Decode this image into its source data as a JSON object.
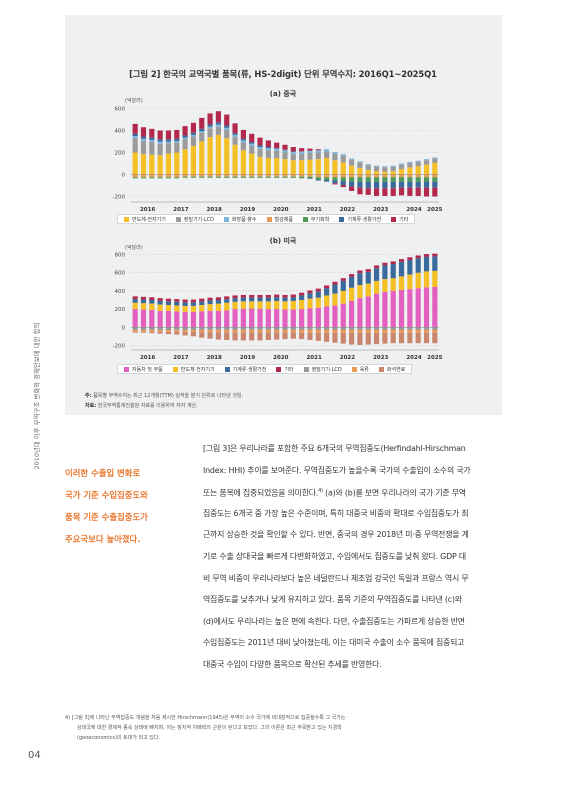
{
  "side_label": "2010년대 이후 무역구조 변화와 경제안보에 대한 함의",
  "figure": {
    "title": "[그림 2] 한국의 교역국별 품목(류, HS-2digit) 단위 무역수지: 2016Q1~2025Q1",
    "panel_a_title": "(a) 중국",
    "panel_b_title": "(b) 미국",
    "unit_label": "(억달러)",
    "note_label": "주:",
    "note_text": "품목별 무역수지는 최근 12개월(TTM) 실적을 분기 단위로 나타낸 것임.",
    "source_label": "자료:",
    "source_text": "한국무역통계진흥원 자료를 이용하여 저자 계산."
  },
  "legend_a": [
    {
      "label": "반도체·전자기기",
      "color": "#f5c026"
    },
    {
      "label": "정밀기기·LCD",
      "color": "#9a9a9a"
    },
    {
      "label": "화장품·향수",
      "color": "#7fb6de"
    },
    {
      "label": "철강제품",
      "color": "#e99a55"
    },
    {
      "label": "무기화학",
      "color": "#4f9a55"
    },
    {
      "label": "기계류·생활가전",
      "color": "#3a6a9b"
    },
    {
      "label": "기타",
      "color": "#b3294d"
    }
  ],
  "legend_b": [
    {
      "label": "자동차 및 부품",
      "color": "#e35fc0"
    },
    {
      "label": "반도체·전자기기",
      "color": "#f5c026"
    },
    {
      "label": "기계류·생활가전",
      "color": "#3a6a9b"
    },
    {
      "label": "기타",
      "color": "#b3294d"
    },
    {
      "label": "정밀기기·LCD",
      "color": "#9a9a9a"
    },
    {
      "label": "육류",
      "color": "#e99a55"
    },
    {
      "label": "화석연료",
      "color": "#c9856e"
    }
  ],
  "chart_data": [
    {
      "type": "bar",
      "stacked": true,
      "title": "(a) 중국",
      "ylabel": "(억달러)",
      "ylim": [
        -250,
        650
      ],
      "yticks": [
        -200,
        0,
        200,
        400,
        600
      ],
      "x_tick_labels": [
        "2016",
        "2017",
        "2018",
        "2019",
        "2020",
        "2021",
        "2022",
        "2023",
        "2024",
        "2025"
      ],
      "periods": [
        "2016Q1",
        "2016Q2",
        "2016Q3",
        "2016Q4",
        "2017Q1",
        "2017Q2",
        "2017Q3",
        "2017Q4",
        "2018Q1",
        "2018Q2",
        "2018Q3",
        "2018Q4",
        "2019Q1",
        "2019Q2",
        "2019Q3",
        "2019Q4",
        "2020Q1",
        "2020Q2",
        "2020Q3",
        "2020Q4",
        "2021Q1",
        "2021Q2",
        "2021Q3",
        "2021Q4",
        "2022Q1",
        "2022Q2",
        "2022Q3",
        "2022Q4",
        "2023Q1",
        "2023Q2",
        "2023Q3",
        "2023Q4",
        "2024Q1",
        "2024Q2",
        "2024Q3",
        "2024Q4",
        "2025Q1"
      ],
      "series": [
        {
          "name": "반도체·전자기기",
          "color": "#f5c026",
          "values": [
            200,
            185,
            180,
            175,
            190,
            200,
            230,
            260,
            300,
            340,
            360,
            330,
            270,
            220,
            190,
            160,
            150,
            150,
            140,
            130,
            130,
            135,
            140,
            150,
            130,
            110,
            80,
            60,
            40,
            30,
            25,
            30,
            50,
            65,
            75,
            90,
            105
          ]
        },
        {
          "name": "정밀기기·LCD",
          "color": "#9a9a9a",
          "values": [
            130,
            120,
            115,
            105,
            95,
            90,
            90,
            85,
            80,
            80,
            75,
            75,
            70,
            70,
            70,
            70,
            70,
            65,
            60,
            55,
            60,
            60,
            60,
            60,
            60,
            60,
            55,
            50,
            45,
            40,
            40,
            40,
            40,
            40,
            40,
            40,
            40
          ]
        },
        {
          "name": "화장품·향수",
          "color": "#7fb6de",
          "values": [
            20,
            20,
            20,
            20,
            15,
            15,
            15,
            15,
            15,
            15,
            20,
            20,
            20,
            20,
            20,
            20,
            20,
            20,
            20,
            20,
            20,
            20,
            20,
            20,
            15,
            15,
            10,
            10,
            10,
            10,
            10,
            10,
            10,
            10,
            10,
            10,
            10
          ]
        },
        {
          "name": "철강제품",
          "color": "#e99a55",
          "values": [
            -25,
            -25,
            -25,
            -25,
            -25,
            -25,
            -20,
            -20,
            -20,
            -20,
            -20,
            -20,
            -20,
            -20,
            -20,
            -20,
            -20,
            -20,
            -20,
            -20,
            -20,
            -20,
            -25,
            -25,
            -25,
            -25,
            -25,
            -25,
            -25,
            -25,
            -25,
            -25,
            -25,
            -25,
            -25,
            -25,
            -25
          ]
        },
        {
          "name": "무기화학",
          "color": "#4f9a55",
          "values": [
            -10,
            -10,
            -10,
            -10,
            -10,
            -10,
            -10,
            -10,
            -10,
            -10,
            -10,
            -10,
            -10,
            -10,
            -10,
            -10,
            -10,
            -10,
            -10,
            -10,
            -15,
            -15,
            -20,
            -25,
            -30,
            -35,
            -40,
            -40,
            -40,
            -40,
            -40,
            -40,
            -40,
            -40,
            -40,
            -40,
            -40
          ]
        },
        {
          "name": "기계류·생활가전",
          "color": "#3a6a9b",
          "values": [
            20,
            20,
            20,
            20,
            20,
            20,
            20,
            20,
            20,
            20,
            20,
            20,
            15,
            15,
            15,
            15,
            10,
            5,
            5,
            5,
            0,
            -5,
            -10,
            -15,
            -25,
            -35,
            -45,
            -55,
            -60,
            -60,
            -60,
            -60,
            -55,
            -55,
            -55,
            -55,
            -55
          ]
        },
        {
          "name": "기타",
          "color": "#b3294d",
          "values": [
            90,
            85,
            80,
            80,
            80,
            80,
            85,
            90,
            100,
            100,
            100,
            100,
            90,
            80,
            75,
            70,
            60,
            50,
            45,
            40,
            30,
            20,
            10,
            0,
            -10,
            -20,
            -40,
            -60,
            -60,
            -70,
            -70,
            -70,
            -70,
            -75,
            -75,
            -80,
            -80
          ]
        }
      ]
    },
    {
      "type": "bar",
      "stacked": true,
      "title": "(b) 미국",
      "ylabel": "(억달러)",
      "ylim": [
        -250,
        850
      ],
      "yticks": [
        -200,
        0,
        200,
        400,
        600,
        800
      ],
      "x_tick_labels": [
        "2016",
        "2017",
        "2018",
        "2019",
        "2020",
        "2021",
        "2022",
        "2023",
        "2024",
        "2025"
      ],
      "periods": [
        "2016Q1",
        "2016Q2",
        "2016Q3",
        "2016Q4",
        "2017Q1",
        "2017Q2",
        "2017Q3",
        "2017Q4",
        "2018Q1",
        "2018Q2",
        "2018Q3",
        "2018Q4",
        "2019Q1",
        "2019Q2",
        "2019Q3",
        "2019Q4",
        "2020Q1",
        "2020Q2",
        "2020Q3",
        "2020Q4",
        "2021Q1",
        "2021Q2",
        "2021Q3",
        "2021Q4",
        "2022Q1",
        "2022Q2",
        "2022Q3",
        "2022Q4",
        "2023Q1",
        "2023Q2",
        "2023Q3",
        "2023Q4",
        "2024Q1",
        "2024Q2",
        "2024Q3",
        "2024Q4",
        "2025Q1"
      ],
      "series": [
        {
          "name": "자동차 및 부품",
          "color": "#e35fc0",
          "values": [
            200,
            195,
            190,
            180,
            180,
            175,
            170,
            170,
            175,
            180,
            180,
            185,
            200,
            205,
            205,
            205,
            200,
            200,
            195,
            195,
            200,
            210,
            215,
            230,
            240,
            260,
            290,
            320,
            340,
            370,
            390,
            400,
            410,
            420,
            430,
            440,
            445
          ]
        },
        {
          "name": "반도체·전자기기",
          "color": "#f5c026",
          "values": [
            70,
            70,
            70,
            70,
            65,
            65,
            65,
            65,
            70,
            75,
            80,
            85,
            80,
            80,
            80,
            80,
            85,
            90,
            90,
            95,
            100,
            105,
            110,
            120,
            130,
            140,
            145,
            145,
            140,
            140,
            140,
            140,
            150,
            160,
            170,
            175,
            175
          ]
        },
        {
          "name": "기계류·생활가전",
          "color": "#3a6a9b",
          "values": [
            40,
            40,
            40,
            40,
            40,
            40,
            40,
            40,
            40,
            40,
            40,
            40,
            40,
            40,
            40,
            40,
            40,
            40,
            40,
            40,
            50,
            60,
            70,
            80,
            100,
            110,
            120,
            130,
            130,
            140,
            150,
            155,
            160,
            160,
            160,
            160,
            160
          ]
        },
        {
          "name": "기타",
          "color": "#b3294d",
          "values": [
            30,
            30,
            30,
            30,
            30,
            30,
            30,
            30,
            30,
            30,
            30,
            30,
            30,
            30,
            30,
            30,
            30,
            30,
            30,
            30,
            30,
            30,
            30,
            30,
            30,
            30,
            30,
            30,
            30,
            30,
            30,
            30,
            30,
            30,
            30,
            30,
            30
          ]
        },
        {
          "name": "정밀기기·LCD",
          "color": "#9a9a9a",
          "values": [
            -30,
            -30,
            -30,
            -30,
            -30,
            -30,
            -30,
            -30,
            -30,
            -30,
            -30,
            -30,
            -30,
            -30,
            -30,
            -30,
            -30,
            -30,
            -30,
            -30,
            -30,
            -30,
            -30,
            -30,
            -30,
            -30,
            -30,
            -30,
            -30,
            -30,
            -30,
            -30,
            -30,
            -30,
            -30,
            -30,
            -30
          ]
        },
        {
          "name": "육류",
          "color": "#e99a55",
          "values": [
            -20,
            -20,
            -20,
            -20,
            -20,
            -20,
            -20,
            -20,
            -25,
            -25,
            -25,
            -25,
            -25,
            -25,
            -25,
            -25,
            -25,
            -25,
            -25,
            -25,
            -30,
            -30,
            -30,
            -30,
            -30,
            -30,
            -30,
            -30,
            -30,
            -30,
            -30,
            -30,
            -30,
            -30,
            -30,
            -30,
            -30
          ]
        },
        {
          "name": "화석연료",
          "color": "#c9856e",
          "values": [
            -10,
            -10,
            -15,
            -20,
            -25,
            -30,
            -40,
            -50,
            -60,
            -70,
            -80,
            -85,
            -90,
            -90,
            -90,
            -90,
            -85,
            -80,
            -75,
            -70,
            -70,
            -80,
            -90,
            -100,
            -110,
            -120,
            -130,
            -135,
            -130,
            -125,
            -120,
            -115,
            -115,
            -115,
            -115,
            -115,
            -115
          ]
        }
      ]
    }
  ],
  "callout": [
    "이러한 수출입 변화로",
    "국가 기준 수입집중도와",
    "품목 기준 수출집중도가",
    "주요국보다 높아졌다."
  ],
  "body": [
    "[그림 3]은 우리나라를 포함한 주요 6개국의 무역집중도(Herfindahl-Hirschman",
    "Index: HHI) 추이를 보여준다. 무역집중도가 높을수록 국가의 수출입이 소수의 국가",
    "또는 품목에 집중되었음을 의미한다.",
    "4)",
    " (a)와 (b)를 보면 우리나라의 국가 기준 무역",
    "집중도는 6개국 중 가장 높은 수준이며, 특히 대중국 비중의 확대로 수입집중도가 최",
    "근까지 상승한 것을 확인할 수 있다. 반면, 중국의 경우 2018년 미·중 무역전쟁을 계",
    "기로 수출 상대국을 빠르게 다변화하였고, 수입에서도 집중도를 낮춰 왔다. GDP 대",
    "비 무역 비중이 우리나라보다 높은 네덜란드나 제조업 강국인 독일과 프랑스 역시 무",
    "역집중도를 낮추거나 낮게 유지하고 있다. 품목 기준의 무역집중도를 나타낸 (c)와",
    "(d)에서도 우리나라는 높은 편에 속한다. 다만, 수출집중도는 가파르게 상승한 반면",
    "수입집중도는 2011년 대비 낮아졌는데, 이는 대미국 수출이 소수 품목에 집중되고",
    "대중국 수입이 다양한 품목으로 확산된 추세를 반영한다."
  ],
  "footnote": [
    "4)   [그림 3]에 나타난 무역집중도 개념을 처음 제시한 Hirschmann(1945)은 무역이 소수 국가에 비대칭적으로 집중될수록 그 국가는",
    "상대국에 대한 경제적 종속 상태에 빠지며, 이는 정치적 지배력의 근원이 된다고 보았다. 그의 이론은 최근 주목받고 있는 지경학",
    "(geoeconomics)의 토대가 되고 있다."
  ],
  "page_number": "04"
}
